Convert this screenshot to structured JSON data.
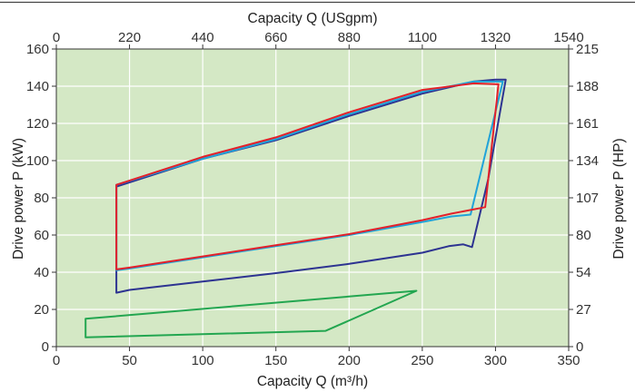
{
  "chart_data": {
    "type": "line",
    "xlabel_bottom": "Capacity Q (m³/h)",
    "xlabel_top": "Capacity Q (USgpm)",
    "ylabel_left": "Drive power P (kW)",
    "ylabel_right": "Drive power P (HP)",
    "xlim": [
      0,
      350
    ],
    "ylim": [
      0,
      160
    ],
    "x_ticks": [
      "0",
      "50",
      "100",
      "150",
      "200",
      "250",
      "300",
      "350"
    ],
    "y_ticks": [
      "0",
      "20",
      "40",
      "60",
      "80",
      "100",
      "120",
      "140",
      "160"
    ],
    "top_ticks": [
      "0",
      "220",
      "440",
      "660",
      "880",
      "1100",
      "1320",
      "1540"
    ],
    "right_ticks": [
      "0",
      "27",
      "54",
      "80",
      "107",
      "134",
      "161",
      "188",
      "215"
    ],
    "grid": true,
    "colors": {
      "plot_background": "#d4e8c5",
      "grid": "#ffffff",
      "frame": "#333333"
    },
    "series": [
      {
        "color": "#23a650",
        "points": [
          [
            20,
            5
          ],
          [
            20,
            15
          ],
          [
            246,
            30
          ],
          [
            184,
            8.5
          ],
          [
            20,
            5
          ]
        ]
      },
      {
        "color": "#2d3391",
        "points": [
          [
            41,
            29
          ],
          [
            41,
            86
          ],
          [
            100,
            101
          ],
          [
            150,
            111
          ],
          [
            200,
            124
          ],
          [
            250,
            136
          ],
          [
            285,
            142.5
          ],
          [
            300,
            143.5
          ],
          [
            307,
            143.5
          ],
          [
            295,
            90
          ],
          [
            284,
            53.5
          ],
          [
            278,
            55
          ],
          [
            268,
            54
          ],
          [
            250,
            50.5
          ],
          [
            200,
            44.5
          ],
          [
            150,
            39.5
          ],
          [
            100,
            35
          ],
          [
            50,
            30.5
          ],
          [
            41,
            29
          ]
        ]
      },
      {
        "color": "#1fa3d9",
        "points": [
          [
            41,
            41
          ],
          [
            41,
            87
          ],
          [
            100,
            101
          ],
          [
            150,
            111.5
          ],
          [
            200,
            125
          ],
          [
            250,
            137
          ],
          [
            285,
            142.5
          ],
          [
            305,
            142.5
          ],
          [
            283,
            71
          ],
          [
            270,
            70
          ],
          [
            250,
            67
          ],
          [
            200,
            60
          ],
          [
            150,
            54
          ],
          [
            100,
            48
          ],
          [
            50,
            42
          ],
          [
            41,
            41
          ]
        ]
      },
      {
        "color": "#e3202a",
        "points": [
          [
            41,
            41.5
          ],
          [
            41,
            87
          ],
          [
            100,
            102
          ],
          [
            150,
            112.5
          ],
          [
            200,
            126
          ],
          [
            250,
            138
          ],
          [
            285,
            141.5
          ],
          [
            302,
            141
          ],
          [
            293,
            75
          ],
          [
            270,
            71.5
          ],
          [
            250,
            68
          ],
          [
            200,
            60.5
          ],
          [
            150,
            54.5
          ],
          [
            100,
            48.5
          ],
          [
            50,
            42.5
          ],
          [
            41,
            41.5
          ]
        ]
      }
    ]
  }
}
